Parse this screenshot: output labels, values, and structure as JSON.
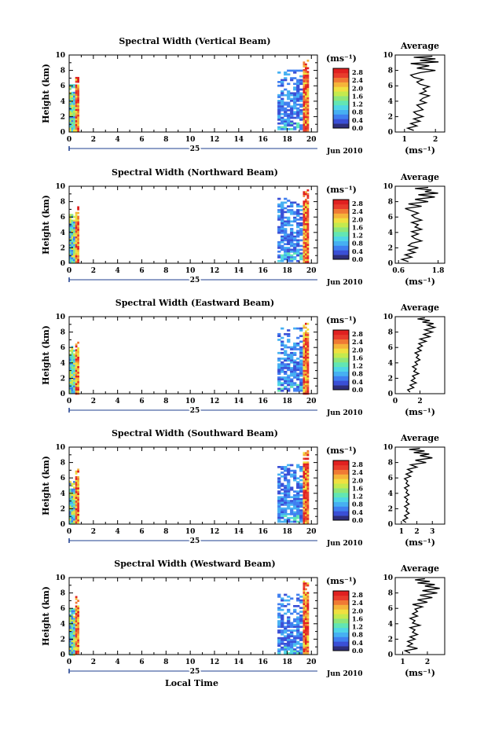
{
  "colors": {
    "colormap": [
      "#2e2e7a",
      "#3a4fd6",
      "#3f7ff0",
      "#46b0f2",
      "#4fd6e6",
      "#62e6b4",
      "#8ee67a",
      "#c4ea4e",
      "#f0e040",
      "#f5b43a",
      "#f07a34",
      "#e83c2c",
      "#e02020"
    ],
    "frame": "#000000",
    "timeline": "#1f3f8f"
  },
  "chart_data": [
    {
      "type": "heatmap",
      "title": "Spectral Width (Vertical Beam)",
      "ylabel": "Height (km)",
      "xticks": [
        "0",
        "2",
        "4",
        "6",
        "8",
        "10",
        "12",
        "14",
        "16",
        "18",
        "20"
      ],
      "yticks": [
        "0",
        "2",
        "4",
        "6",
        "8",
        "10"
      ],
      "xlim": [
        0,
        20.5
      ],
      "ylim": [
        0,
        10
      ],
      "day_label": "25",
      "month_label": "Jun 2010",
      "cbar_unit": "(ms⁻¹)",
      "cbar_ticks": [
        "0.0",
        "0.4",
        "0.8",
        "1.2",
        "1.6",
        "2.0",
        "2.4",
        "2.8"
      ],
      "cbar_range": [
        0,
        3.0
      ],
      "avg_title": "Average",
      "avg_xlabel": "(ms⁻¹)",
      "avg_xticks": [
        "1",
        "2"
      ],
      "avg_xlim": [
        0.7,
        2.3
      ],
      "avg_profile": [
        [
          1.3,
          0.2
        ],
        [
          1.1,
          0.5
        ],
        [
          1.4,
          0.8
        ],
        [
          1.2,
          1.1
        ],
        [
          1.5,
          1.4
        ],
        [
          1.3,
          1.7
        ],
        [
          1.6,
          2.0
        ],
        [
          1.4,
          2.3
        ],
        [
          1.3,
          2.6
        ],
        [
          1.6,
          2.9
        ],
        [
          1.5,
          3.2
        ],
        [
          1.4,
          3.5
        ],
        [
          1.7,
          3.8
        ],
        [
          1.5,
          4.1
        ],
        [
          1.6,
          4.4
        ],
        [
          1.8,
          4.7
        ],
        [
          1.5,
          5.0
        ],
        [
          1.7,
          5.3
        ],
        [
          1.6,
          5.6
        ],
        [
          1.8,
          5.9
        ],
        [
          1.5,
          6.2
        ],
        [
          1.4,
          6.5
        ],
        [
          1.6,
          6.8
        ],
        [
          1.3,
          7.1
        ],
        [
          1.2,
          7.4
        ],
        [
          1.5,
          7.7
        ],
        [
          2.0,
          8.0
        ],
        [
          1.4,
          8.3
        ],
        [
          1.8,
          8.6
        ],
        [
          1.2,
          8.9
        ],
        [
          2.1,
          9.1
        ],
        [
          1.5,
          9.3
        ],
        [
          2.0,
          9.5
        ],
        [
          1.3,
          9.7
        ],
        [
          1.9,
          9.85
        ]
      ],
      "regions": [
        {
          "t0": 0.0,
          "t1": 0.4,
          "h0": 0.1,
          "h1": 6.2
        },
        {
          "t0": 0.5,
          "t1": 0.75,
          "h0": 0.1,
          "h1": 7.4
        },
        {
          "t0": 17.2,
          "t1": 19.2,
          "h0": 0.3,
          "h1": 8.1
        },
        {
          "t0": 19.3,
          "t1": 19.7,
          "h0": 0.1,
          "h1": 9.4
        }
      ]
    },
    {
      "type": "heatmap",
      "title": "Spectral Width (Northward Beam)",
      "ylabel": "Height (km)",
      "xticks": [
        "0",
        "2",
        "4",
        "6",
        "8",
        "10",
        "12",
        "14",
        "16",
        "18",
        "20"
      ],
      "yticks": [
        "0",
        "2",
        "4",
        "6",
        "8",
        "10"
      ],
      "xlim": [
        0,
        20.5
      ],
      "ylim": [
        0,
        10
      ],
      "day_label": "25",
      "month_label": "Jun 2010",
      "cbar_unit": "(ms⁻¹)",
      "cbar_ticks": [
        "0.0",
        "0.4",
        "0.8",
        "1.2",
        "1.6",
        "2.0",
        "2.4",
        "2.8"
      ],
      "cbar_range": [
        0,
        3.0
      ],
      "avg_title": "Average",
      "avg_xlabel": "(ms⁻¹)",
      "avg_xticks": [
        "0.6",
        "1.8"
      ],
      "avg_xlim": [
        0.5,
        2.0
      ],
      "avg_profile": [
        [
          0.9,
          0.2
        ],
        [
          0.7,
          0.5
        ],
        [
          1.0,
          0.8
        ],
        [
          0.8,
          1.1
        ],
        [
          1.1,
          1.4
        ],
        [
          0.9,
          1.7
        ],
        [
          1.2,
          2.0
        ],
        [
          0.9,
          2.3
        ],
        [
          1.0,
          2.6
        ],
        [
          1.3,
          2.9
        ],
        [
          1.1,
          3.2
        ],
        [
          1.0,
          3.5
        ],
        [
          1.2,
          3.8
        ],
        [
          1.0,
          4.1
        ],
        [
          1.3,
          4.4
        ],
        [
          1.1,
          4.7
        ],
        [
          1.2,
          5.0
        ],
        [
          1.0,
          5.3
        ],
        [
          1.3,
          5.6
        ],
        [
          1.1,
          5.9
        ],
        [
          1.0,
          6.2
        ],
        [
          1.2,
          6.5
        ],
        [
          1.0,
          6.8
        ],
        [
          0.8,
          7.1
        ],
        [
          1.3,
          7.4
        ],
        [
          0.9,
          7.7
        ],
        [
          1.5,
          8.0
        ],
        [
          1.1,
          8.3
        ],
        [
          1.7,
          8.6
        ],
        [
          1.2,
          8.9
        ],
        [
          1.8,
          9.1
        ],
        [
          1.4,
          9.3
        ],
        [
          1.6,
          9.5
        ],
        [
          1.1,
          9.7
        ],
        [
          1.5,
          9.85
        ]
      ],
      "regions": [
        {
          "t0": 0.0,
          "t1": 0.45,
          "h0": 0.1,
          "h1": 6.4
        },
        {
          "t0": 0.5,
          "t1": 0.75,
          "h0": 0.1,
          "h1": 7.4
        },
        {
          "t0": 17.2,
          "t1": 19.2,
          "h0": 0.3,
          "h1": 8.5
        },
        {
          "t0": 19.3,
          "t1": 19.7,
          "h0": 0.1,
          "h1": 9.6
        }
      ]
    },
    {
      "type": "heatmap",
      "title": "Spectral Width (Eastward Beam)",
      "ylabel": "Height (km)",
      "xticks": [
        "0",
        "2",
        "4",
        "6",
        "8",
        "10",
        "12",
        "14",
        "16",
        "18",
        "20"
      ],
      "yticks": [
        "0",
        "2",
        "4",
        "6",
        "8",
        "10"
      ],
      "xlim": [
        0,
        20.5
      ],
      "ylim": [
        0,
        10
      ],
      "day_label": "25",
      "month_label": "Jun 2010",
      "cbar_unit": "(ms⁻¹)",
      "cbar_ticks": [
        "0.0",
        "0.4",
        "0.8",
        "1.2",
        "1.6",
        "2.0",
        "2.4",
        "2.8"
      ],
      "cbar_range": [
        0,
        3.0
      ],
      "avg_title": "Average",
      "avg_xlabel": "(ms⁻¹)",
      "avg_xticks": [
        "0",
        "2"
      ],
      "avg_xlim": [
        0,
        4
      ],
      "avg_profile": [
        [
          1.2,
          0.2
        ],
        [
          1.0,
          0.5
        ],
        [
          1.5,
          0.8
        ],
        [
          1.2,
          1.1
        ],
        [
          1.7,
          1.4
        ],
        [
          1.3,
          1.7
        ],
        [
          1.6,
          2.0
        ],
        [
          1.4,
          2.3
        ],
        [
          1.9,
          2.6
        ],
        [
          1.5,
          2.9
        ],
        [
          1.7,
          3.2
        ],
        [
          1.4,
          3.5
        ],
        [
          1.8,
          3.8
        ],
        [
          1.6,
          4.1
        ],
        [
          2.0,
          4.4
        ],
        [
          1.7,
          4.7
        ],
        [
          1.9,
          5.0
        ],
        [
          1.6,
          5.3
        ],
        [
          2.1,
          5.6
        ],
        [
          1.8,
          5.9
        ],
        [
          2.2,
          6.2
        ],
        [
          1.9,
          6.5
        ],
        [
          2.5,
          6.8
        ],
        [
          2.0,
          7.1
        ],
        [
          2.8,
          7.4
        ],
        [
          2.3,
          7.7
        ],
        [
          3.0,
          8.0
        ],
        [
          2.4,
          8.3
        ],
        [
          3.2,
          8.6
        ],
        [
          2.6,
          8.9
        ],
        [
          3.1,
          9.1
        ],
        [
          2.2,
          9.3
        ],
        [
          2.8,
          9.5
        ],
        [
          1.8,
          9.7
        ],
        [
          2.4,
          9.85
        ]
      ],
      "regions": [
        {
          "t0": 0.0,
          "t1": 0.45,
          "h0": 0.1,
          "h1": 6.2
        },
        {
          "t0": 0.5,
          "t1": 0.75,
          "h0": 0.1,
          "h1": 7.0
        },
        {
          "t0": 17.2,
          "t1": 19.2,
          "h0": 0.3,
          "h1": 8.6
        },
        {
          "t0": 19.3,
          "t1": 19.7,
          "h0": 0.1,
          "h1": 9.2
        }
      ]
    },
    {
      "type": "heatmap",
      "title": "Spectral Width (Southward Beam)",
      "ylabel": "Height (km)",
      "xticks": [
        "0",
        "2",
        "4",
        "6",
        "8",
        "10",
        "12",
        "14",
        "16",
        "18",
        "20"
      ],
      "yticks": [
        "0",
        "2",
        "4",
        "6",
        "8",
        "10"
      ],
      "xlim": [
        0,
        20.5
      ],
      "ylim": [
        0,
        10
      ],
      "day_label": "25",
      "month_label": "Jun 2010",
      "cbar_unit": "(ms⁻¹)",
      "cbar_ticks": [
        "0.0",
        "0.4",
        "0.8",
        "1.2",
        "1.6",
        "2.0",
        "2.4",
        "2.8"
      ],
      "cbar_range": [
        0,
        3.0
      ],
      "avg_title": "Average",
      "avg_xlabel": "(ms⁻¹)",
      "avg_xticks": [
        "1",
        "2",
        "3"
      ],
      "avg_xlim": [
        0.6,
        3.8
      ],
      "avg_profile": [
        [
          1.3,
          0.2
        ],
        [
          1.1,
          0.5
        ],
        [
          1.4,
          0.8
        ],
        [
          1.2,
          1.1
        ],
        [
          1.5,
          1.4
        ],
        [
          1.3,
          1.7
        ],
        [
          1.4,
          2.0
        ],
        [
          1.2,
          2.3
        ],
        [
          1.5,
          2.6
        ],
        [
          1.3,
          2.9
        ],
        [
          1.4,
          3.2
        ],
        [
          1.2,
          3.5
        ],
        [
          1.5,
          3.8
        ],
        [
          1.3,
          4.1
        ],
        [
          1.4,
          4.4
        ],
        [
          1.2,
          4.7
        ],
        [
          1.5,
          5.0
        ],
        [
          1.3,
          5.3
        ],
        [
          1.4,
          5.6
        ],
        [
          1.2,
          5.9
        ],
        [
          1.6,
          6.2
        ],
        [
          1.3,
          6.5
        ],
        [
          1.7,
          6.8
        ],
        [
          1.4,
          7.1
        ],
        [
          2.0,
          7.4
        ],
        [
          1.6,
          7.7
        ],
        [
          2.6,
          8.0
        ],
        [
          1.9,
          8.3
        ],
        [
          3.0,
          8.6
        ],
        [
          2.2,
          8.9
        ],
        [
          2.8,
          9.1
        ],
        [
          1.8,
          9.3
        ],
        [
          2.5,
          9.5
        ],
        [
          1.5,
          9.7
        ],
        [
          2.2,
          9.85
        ]
      ],
      "regions": [
        {
          "t0": 0.0,
          "t1": 0.45,
          "h0": 0.1,
          "h1": 5.6
        },
        {
          "t0": 0.5,
          "t1": 0.75,
          "h0": 0.1,
          "h1": 7.2
        },
        {
          "t0": 17.2,
          "t1": 19.2,
          "h0": 0.3,
          "h1": 7.8
        },
        {
          "t0": 19.3,
          "t1": 19.7,
          "h0": 0.1,
          "h1": 9.6
        }
      ]
    },
    {
      "type": "heatmap",
      "title": "Spectral Width (Westward Beam)",
      "ylabel": "Height (km)",
      "xlabel": "Local Time",
      "xticks": [
        "0",
        "2",
        "4",
        "6",
        "8",
        "10",
        "12",
        "14",
        "16",
        "18",
        "20"
      ],
      "yticks": [
        "0",
        "2",
        "4",
        "6",
        "8",
        "10"
      ],
      "xlim": [
        0,
        20.5
      ],
      "ylim": [
        0,
        10
      ],
      "day_label": "25",
      "month_label": "Jun 2010",
      "cbar_unit": "(ms⁻¹)",
      "cbar_ticks": [
        "0.0",
        "0.4",
        "0.8",
        "1.2",
        "1.6",
        "2.0",
        "2.4",
        "2.8"
      ],
      "cbar_range": [
        0,
        3.0
      ],
      "avg_title": "Average",
      "avg_xlabel": "(ms⁻¹)",
      "avg_xticks": [
        "1",
        "2"
      ],
      "avg_xlim": [
        0.7,
        2.7
      ],
      "avg_profile": [
        [
          1.3,
          0.2
        ],
        [
          1.1,
          0.5
        ],
        [
          1.6,
          0.8
        ],
        [
          1.2,
          1.1
        ],
        [
          1.4,
          1.4
        ],
        [
          1.2,
          1.7
        ],
        [
          1.5,
          2.0
        ],
        [
          1.3,
          2.3
        ],
        [
          1.6,
          2.6
        ],
        [
          1.4,
          2.9
        ],
        [
          1.5,
          3.2
        ],
        [
          1.3,
          3.5
        ],
        [
          1.7,
          3.8
        ],
        [
          1.4,
          4.1
        ],
        [
          1.5,
          4.4
        ],
        [
          1.3,
          4.7
        ],
        [
          1.6,
          5.0
        ],
        [
          1.4,
          5.3
        ],
        [
          1.6,
          5.6
        ],
        [
          1.5,
          5.9
        ],
        [
          1.8,
          6.2
        ],
        [
          1.4,
          6.5
        ],
        [
          2.0,
          6.8
        ],
        [
          1.6,
          7.1
        ],
        [
          2.2,
          7.4
        ],
        [
          1.7,
          7.7
        ],
        [
          2.4,
          8.0
        ],
        [
          1.8,
          8.3
        ],
        [
          2.5,
          8.6
        ],
        [
          1.9,
          8.9
        ],
        [
          2.3,
          9.1
        ],
        [
          1.6,
          9.3
        ],
        [
          2.1,
          9.5
        ],
        [
          1.5,
          9.7
        ],
        [
          1.9,
          9.85
        ]
      ],
      "regions": [
        {
          "t0": 0.0,
          "t1": 0.45,
          "h0": 0.1,
          "h1": 6.0
        },
        {
          "t0": 0.5,
          "t1": 0.75,
          "h0": 0.1,
          "h1": 7.6
        },
        {
          "t0": 17.2,
          "t1": 19.2,
          "h0": 0.3,
          "h1": 7.9
        },
        {
          "t0": 19.3,
          "t1": 19.7,
          "h0": 0.1,
          "h1": 9.6
        }
      ]
    }
  ]
}
